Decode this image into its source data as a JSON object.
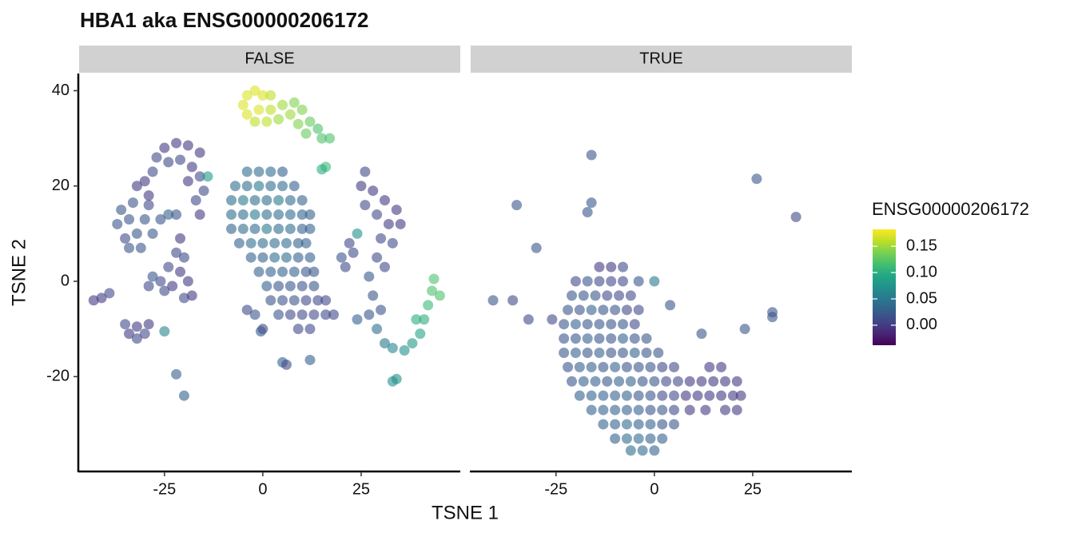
{
  "chart_data": {
    "type": "scatter",
    "title": "HBA1  aka ENSG00000206172",
    "xlabel": "TSNE 1",
    "ylabel": "TSNE 2",
    "color_label": "ENSG00000206172",
    "colormap": "viridis",
    "xlim": [
      -46.7,
      50.2
    ],
    "ylim": [
      -39.9,
      43.6
    ],
    "xticks": [
      -25,
      0,
      25
    ],
    "yticks": [
      -20,
      0,
      20,
      40
    ],
    "colorlim": [
      -0.038,
      0.182
    ],
    "colorticks": [
      0.15,
      {
        "value": 0.1,
        "label": "0.10"
      },
      0.05,
      {
        "value": 0,
        "label": "0.00"
      }
    ],
    "facets": [
      {
        "label": "FALSE",
        "x": [
          -5,
          -4,
          -2,
          0,
          2,
          -4,
          -1,
          2,
          -2,
          1,
          4,
          5,
          7,
          8,
          10,
          9,
          12,
          11,
          14,
          15,
          17,
          16,
          15,
          -32,
          -30,
          -29,
          -28,
          -27,
          -25,
          -22,
          -19,
          -16,
          -24,
          -21,
          -18,
          -16,
          -19,
          -15,
          -17,
          -16,
          -14,
          -37,
          -36,
          -35,
          -34,
          -33,
          -32,
          -31,
          -30,
          -29,
          -28,
          -26,
          -24,
          -34,
          -22,
          -21,
          -22,
          -20,
          -24,
          -21,
          -28,
          -26,
          -29,
          -25,
          -23,
          -19,
          -20,
          -18,
          -43,
          -41,
          -39,
          -35,
          -34,
          -32,
          -32,
          -30,
          -29,
          -25,
          -22,
          -20,
          -4,
          -1,
          2,
          5,
          -7,
          -4,
          -1,
          2,
          5,
          8,
          -8,
          -5,
          -2,
          1,
          4,
          7,
          10,
          -8,
          -5,
          -2,
          1,
          4,
          7,
          10,
          12,
          -8,
          -5,
          -2,
          1,
          4,
          7,
          10,
          12,
          -6,
          -3,
          0,
          3,
          6,
          9,
          11,
          -3,
          0,
          3,
          6,
          9,
          12,
          -1,
          2,
          5,
          8,
          11,
          13,
          1,
          4,
          7,
          10,
          13,
          2,
          5,
          8,
          11,
          14,
          16,
          -2,
          4,
          7,
          10,
          13,
          16,
          18,
          0,
          9,
          12,
          -4,
          -0.5,
          5,
          6,
          12,
          26,
          25,
          28,
          31,
          34,
          29,
          32,
          35,
          26,
          30,
          33,
          29,
          31,
          22,
          20,
          23,
          21,
          24,
          27,
          28,
          27,
          24,
          29,
          30,
          31,
          33,
          36,
          38,
          40,
          41,
          42,
          43,
          43.5,
          45,
          39,
          33,
          34
        ],
        "y": [
          37,
          39,
          40,
          39,
          39,
          35,
          36,
          36,
          33.5,
          33.5,
          34,
          37,
          35,
          37.5,
          36,
          33,
          33.5,
          31,
          32,
          30,
          30,
          24,
          23.5,
          20,
          21,
          18,
          23,
          26,
          28,
          29,
          28.5,
          27,
          25,
          25.5,
          24,
          22,
          21,
          19,
          17,
          14,
          22,
          12,
          15,
          9,
          13,
          16.5,
          10,
          7,
          13,
          16,
          10,
          13,
          14,
          7,
          14,
          9,
          6,
          5,
          3,
          2,
          1,
          0,
          -1,
          -2,
          -1,
          0,
          -3.5,
          -3,
          -4,
          -3.5,
          -2.5,
          -9,
          -11,
          -12,
          -9.5,
          -11,
          -9,
          -10.5,
          -19.5,
          -24,
          23,
          23,
          23,
          23,
          20,
          20,
          20,
          20,
          20,
          20,
          17,
          17,
          17,
          17,
          17,
          17,
          17,
          14,
          14,
          14,
          14,
          14,
          14,
          14,
          14,
          11,
          11,
          11,
          11,
          11,
          11,
          11,
          11,
          8,
          8,
          8,
          8,
          8,
          8,
          8,
          5,
          5,
          5,
          5,
          5,
          5,
          2,
          2,
          2,
          2,
          2,
          2,
          -1,
          -1,
          -1,
          -1,
          -1,
          -4,
          -4,
          -4,
          -4,
          -4,
          -4,
          -7,
          -7,
          -7,
          -7,
          -7,
          -7,
          -7,
          -10,
          -10,
          -10,
          -6,
          -10.5,
          -17,
          -17.5,
          -16.5,
          23,
          20,
          19,
          17,
          15,
          14,
          12,
          12,
          16,
          9,
          8,
          5,
          3,
          8,
          5,
          6,
          3,
          10,
          1,
          -3,
          -7,
          -8,
          -10,
          -6,
          -13,
          -14,
          -14.5,
          -13,
          -11,
          -8,
          -5,
          -2,
          0.5,
          -3,
          -8,
          -21,
          -20.5
        ],
        "values": [
          0.17,
          0.17,
          0.17,
          0.17,
          0.16,
          0.17,
          0.17,
          0.16,
          0.16,
          0.16,
          0.15,
          0.15,
          0.15,
          0.14,
          0.14,
          0.14,
          0.13,
          0.13,
          0.12,
          0.12,
          0.12,
          0.11,
          0.1,
          0,
          0,
          0,
          0.01,
          0.01,
          0,
          0,
          0,
          0,
          0.01,
          0.01,
          0,
          0.01,
          0,
          0.01,
          0.01,
          0,
          0.08,
          0.02,
          0.02,
          0.01,
          0.02,
          0.02,
          0.02,
          0.02,
          0.02,
          0.01,
          0.02,
          0.02,
          0.03,
          0.02,
          0.02,
          0,
          0.01,
          0.01,
          0.01,
          0,
          0.02,
          0.01,
          0.01,
          0.01,
          0,
          0,
          0.01,
          0,
          0,
          0,
          0.01,
          0.01,
          0,
          0.01,
          0,
          0.01,
          0,
          0.06,
          0.03,
          0.03,
          0.04,
          0.04,
          0.04,
          0.03,
          0.04,
          0.04,
          0.05,
          0.04,
          0.04,
          0.03,
          0.04,
          0.05,
          0.04,
          0.04,
          0.05,
          0.04,
          0.03,
          0.04,
          0.04,
          0.05,
          0.04,
          0.04,
          0.04,
          0.03,
          0.03,
          0.03,
          0.04,
          0.04,
          0.05,
          0.04,
          0.04,
          0.03,
          0.03,
          0.03,
          0.04,
          0.04,
          0.04,
          0.04,
          0.03,
          0.03,
          0.03,
          0.03,
          0.04,
          0.04,
          0.03,
          0.03,
          0.03,
          0.03,
          0.03,
          0.03,
          0.02,
          0.02,
          0.03,
          0.02,
          0.02,
          0.02,
          0.02,
          0.02,
          0.02,
          0.02,
          0.01,
          0.01,
          0.01,
          0.02,
          0.02,
          0.01,
          0.01,
          0.01,
          0.01,
          0.01,
          0.01,
          0.01,
          0.01,
          0.01,
          0.02,
          0.03,
          0.01,
          0.03,
          0.01,
          0,
          0,
          0,
          0,
          0.01,
          0,
          0,
          0.01,
          0.01,
          0.01,
          0.01,
          0.01,
          0.01,
          0.02,
          0.01,
          0.01,
          0.07,
          0.02,
          0.02,
          0.02,
          0.03,
          0.04,
          0.02,
          0.05,
          0.06,
          0.07,
          0.08,
          0.09,
          0.1,
          0.11,
          0.12,
          0.12,
          0.12,
          0.1,
          0.07,
          0.07
        ]
      },
      {
        "label": "TRUE",
        "x": [
          -16,
          -35,
          -17,
          -16,
          -30,
          26,
          36,
          -41,
          -36,
          -32,
          -26,
          -4,
          0,
          4,
          12,
          23,
          30,
          30,
          -14,
          -11,
          -8,
          -20,
          -17,
          -14,
          -11,
          -8,
          -21,
          -18,
          -15,
          -12,
          -9,
          -6,
          -22,
          -19,
          -16,
          -13,
          -10,
          -7,
          -4,
          -23,
          -20,
          -17,
          -14,
          -11,
          -8,
          -5,
          -23,
          -20,
          -17,
          -14,
          -11,
          -8,
          -5,
          -2,
          -23,
          -20,
          -17,
          -14,
          -11,
          -8,
          -5,
          -2,
          1,
          -22,
          -19,
          -16,
          -13,
          -10,
          -7,
          -4,
          -1,
          2,
          5,
          14,
          17,
          -21,
          -18,
          -15,
          -12,
          -9,
          -6,
          -3,
          0,
          3,
          6,
          9,
          12,
          15,
          18,
          21,
          -19,
          -16,
          -13,
          -10,
          -7,
          -4,
          -1,
          2,
          5,
          8,
          11,
          14,
          17,
          20,
          22,
          -16,
          -13,
          -10,
          -7,
          -4,
          -1,
          2,
          5,
          9,
          13,
          18,
          21,
          -13,
          -10,
          -7,
          -4,
          -1,
          2,
          5,
          -10,
          -7,
          -4,
          -1,
          2,
          -6,
          -3,
          0
        ],
        "y": [
          26.5,
          16,
          14.5,
          16.5,
          7,
          21.5,
          13.5,
          -4,
          -4,
          -8,
          -8,
          0,
          0,
          -5,
          -11,
          -10,
          -6.5,
          -7.5,
          3,
          3,
          3,
          0,
          0,
          0,
          0,
          0,
          -3,
          -3,
          -3,
          -3,
          -3,
          -3,
          -6,
          -6,
          -6,
          -6,
          -6,
          -6,
          -6,
          -9,
          -9,
          -9,
          -9,
          -9,
          -9,
          -9,
          -12,
          -12,
          -12,
          -12,
          -12,
          -12,
          -12,
          -12,
          -15,
          -15,
          -15,
          -15,
          -15,
          -15,
          -15,
          -15,
          -15,
          -18,
          -18,
          -18,
          -18,
          -18,
          -18,
          -18,
          -18,
          -18,
          -18,
          -18,
          -18,
          -21,
          -21,
          -21,
          -21,
          -21,
          -21,
          -21,
          -21,
          -21,
          -21,
          -21,
          -21,
          -21,
          -21,
          -21,
          -24,
          -24,
          -24,
          -24,
          -24,
          -24,
          -24,
          -24,
          -24,
          -24,
          -24,
          -24,
          -24,
          -24,
          -24,
          -27,
          -27,
          -27,
          -27,
          -27,
          -27,
          -27,
          -27,
          -27,
          -27,
          -27,
          -27,
          -30,
          -30,
          -30,
          -30,
          -30,
          -30,
          -30,
          -33,
          -33,
          -33,
          -33,
          -33,
          -35.5,
          -35.5,
          -35.5
        ],
        "values": [
          0.02,
          0.02,
          0.02,
          0.02,
          0.02,
          0.02,
          0.01,
          0.02,
          0.01,
          0.01,
          0.01,
          0.02,
          0.05,
          0.02,
          0.02,
          0.02,
          0.02,
          0.02,
          0,
          0,
          0.01,
          0.01,
          0.02,
          0.01,
          0.01,
          0.01,
          0.02,
          0.02,
          0.02,
          0.01,
          0.01,
          0.01,
          0.02,
          0.02,
          0.03,
          0.02,
          0.02,
          0.01,
          0.01,
          0.02,
          0.03,
          0.02,
          0.02,
          0.02,
          0.02,
          0.01,
          0.02,
          0.02,
          0.03,
          0.02,
          0.02,
          0.03,
          0.02,
          0.02,
          0.02,
          0.03,
          0.02,
          0.03,
          0.02,
          0.02,
          0.03,
          0.02,
          0.02,
          0.02,
          0.03,
          0.03,
          0.02,
          0.03,
          0.02,
          0.02,
          0.02,
          0.01,
          0.01,
          0,
          0,
          0.02,
          0.03,
          0.03,
          0.02,
          0.03,
          0.03,
          0.02,
          0.02,
          0.01,
          0.01,
          0,
          0,
          0,
          0,
          0,
          0.03,
          0.03,
          0.03,
          0.03,
          0.03,
          0.02,
          0.02,
          0.01,
          0.01,
          0,
          0,
          0,
          0,
          0,
          0,
          0.03,
          0.03,
          0.03,
          0.03,
          0.03,
          0.02,
          0.02,
          0.01,
          0,
          0,
          0,
          0,
          0.03,
          0.03,
          0.04,
          0.03,
          0.03,
          0.02,
          0.02,
          0.03,
          0.04,
          0.04,
          0.03,
          0.03,
          0.04,
          0.04,
          0.03
        ]
      }
    ]
  }
}
